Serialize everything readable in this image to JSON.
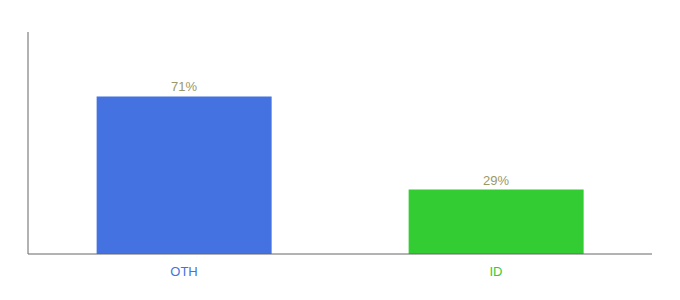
{
  "chart_data": {
    "type": "bar",
    "categories": [
      "OTH",
      "ID"
    ],
    "values": [
      71,
      29
    ],
    "value_labels": [
      "71%",
      "29%"
    ],
    "colors": [
      "#4472e0",
      "#33cc33"
    ],
    "data_labels": true,
    "ylim": [
      0,
      100
    ],
    "tick_labels": "x",
    "grid": false
  }
}
